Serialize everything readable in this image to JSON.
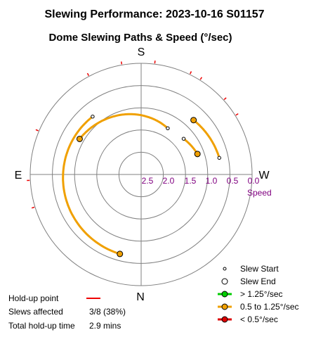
{
  "chart_data": {
    "type": "polar",
    "title": "Slewing Performance: 2023-10-16 S01157",
    "subtitle": "Dome Slewing Paths & Speed (°/sec)",
    "directions": {
      "top": "S",
      "bottom": "N",
      "left": "E",
      "right": "W"
    },
    "radial_axis": {
      "label": "Speed",
      "ticks": [
        "2.5",
        "2.0",
        "1.5",
        "1.0",
        "0.5",
        "0.0"
      ],
      "range": [
        2.5,
        0.0
      ]
    },
    "grid": true,
    "slews": [
      {
        "start_az_deg": 12,
        "start_speed": 0.7,
        "end_az_deg": 46,
        "end_speed": 0.8,
        "speed_band": "0.5 to 1.25°/sec"
      },
      {
        "start_az_deg": 60,
        "start_speed": 1.3,
        "end_az_deg": 150,
        "end_speed": 0.9,
        "speed_band": "0.5 to 1.25°/sec"
      },
      {
        "start_az_deg": 130,
        "start_speed": 0.8,
        "end_az_deg": 255,
        "end_speed": 0.65,
        "speed_band": "0.5 to 1.25°/sec"
      },
      {
        "start_az_deg": 40,
        "start_speed": 1.25,
        "end_az_deg": 20,
        "end_speed": 1.15,
        "speed_band": "0.5 to 1.25°/sec"
      }
    ],
    "holdup_azimuths_deg": [
      32,
      42,
      58,
      64,
      83,
      100,
      118,
      157,
      183,
      197
    ],
    "legend": [
      {
        "label": "Slew Start",
        "marker": "small-circle"
      },
      {
        "label": "Slew End",
        "marker": "large-circle"
      },
      {
        "label": "> 1.25°/sec",
        "color": "#00cc00"
      },
      {
        "label": "0.5 to 1.25°/sec",
        "color": "#f0a000"
      },
      {
        "label": "< 0.5°/sec",
        "color": "#dd0000"
      }
    ],
    "legend_position": "bottom-right"
  },
  "colors": {
    "slew": "#f0a000",
    "holdup": "#ee0000",
    "fast": "#00cc00",
    "slow": "#dd0000",
    "speed_label": "#800080",
    "grid": "#808080"
  },
  "summary": {
    "holdup_label": "Hold-up point",
    "slews_affected_label": "Slews affected",
    "slews_affected_value": "3/8 (38%)",
    "total_holdup_label": "Total hold-up time",
    "total_holdup_value": "2.9 mins"
  }
}
